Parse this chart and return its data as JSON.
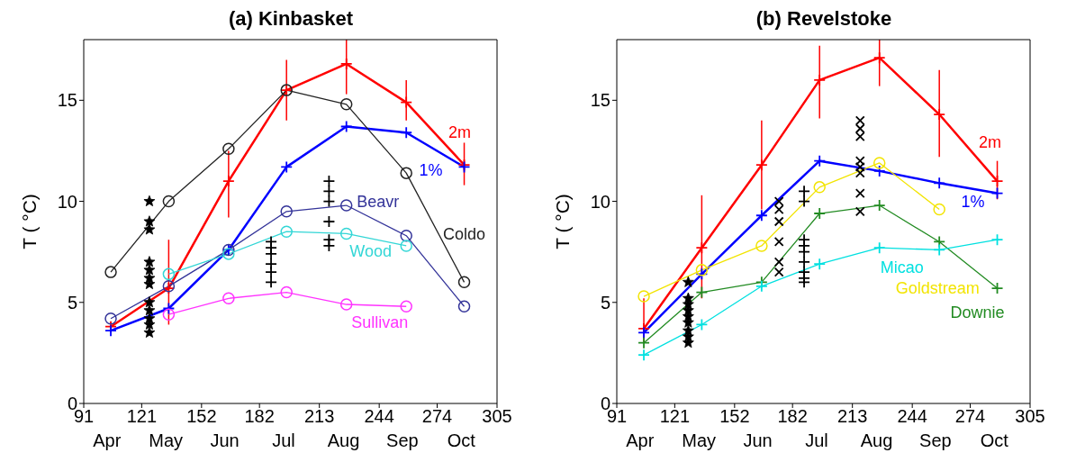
{
  "chart_data": [
    {
      "type": "line",
      "title": "(a) Kinbasket",
      "ylabel": "T ( °C)",
      "xlim": [
        91,
        305
      ],
      "xticks": [
        91,
        121,
        152,
        182,
        213,
        244,
        274,
        305
      ],
      "annotations": [
        "Apr",
        "May",
        "Jun",
        "Jul",
        "Aug",
        "Sep",
        "Oct"
      ],
      "ylim": [
        0,
        18
      ],
      "yticks": [
        0,
        5,
        10,
        15
      ],
      "series": [
        {
          "name": "2m",
          "color": "#ff0000",
          "marker": "cross",
          "x": [
            105,
            135,
            166,
            196,
            227,
            258,
            288
          ],
          "values": [
            3.8,
            5.7,
            11.0,
            15.5,
            16.8,
            14.9,
            11.8
          ],
          "errors": [
            null,
            [
              3.9,
              8.1
            ],
            [
              9.2,
              12.5
            ],
            [
              14.0,
              17.0
            ],
            [
              15.3,
              18.0
            ],
            [
              14.0,
              16.0
            ],
            [
              10.8,
              12.9
            ]
          ]
        },
        {
          "name": "1%",
          "color": "#0000ff",
          "marker": "cross",
          "x": [
            105,
            135,
            166,
            196,
            227,
            258,
            288
          ],
          "values": [
            3.6,
            4.7,
            7.6,
            11.7,
            13.7,
            13.4,
            11.7
          ]
        },
        {
          "name": "Coldo",
          "color": "#222222",
          "marker": "circle",
          "x": [
            105,
            135,
            166,
            196,
            227,
            258,
            288
          ],
          "values": [
            6.5,
            10.0,
            12.6,
            15.5,
            14.8,
            11.4,
            6.0
          ]
        },
        {
          "name": "Beavr",
          "color": "#333399",
          "marker": "circle",
          "x": [
            105,
            135,
            166,
            196,
            227,
            258,
            288
          ],
          "values": [
            4.2,
            5.8,
            7.6,
            9.5,
            9.8,
            8.3,
            4.8
          ]
        },
        {
          "name": "Wood",
          "color": "#33d6d6",
          "marker": "circle",
          "x": [
            135,
            166,
            196,
            227,
            258
          ],
          "values": [
            6.4,
            7.4,
            8.5,
            8.4,
            7.8
          ]
        },
        {
          "name": "Sullivan",
          "color": "#ff33ff",
          "marker": "circle",
          "x": [
            135,
            166,
            196,
            227,
            258
          ],
          "values": [
            4.4,
            5.2,
            5.5,
            4.9,
            4.8
          ]
        },
        {
          "type": "scatter",
          "color": "#000000",
          "marker": "star",
          "x": [
            125,
            125,
            125,
            125,
            125,
            125,
            125,
            125,
            125,
            125,
            125,
            125
          ],
          "values": [
            10.0,
            9.0,
            8.6,
            7.0,
            6.6,
            6.2,
            5.9,
            5.0,
            4.6,
            4.2,
            3.9,
            3.5
          ]
        },
        {
          "type": "scatter",
          "color": "#000000",
          "marker": "cross",
          "x": [
            188,
            188,
            188,
            188,
            188,
            188
          ],
          "values": [
            8.0,
            7.7,
            7.4,
            6.9,
            6.5,
            6.0
          ]
        },
        {
          "type": "scatter",
          "color": "#000000",
          "marker": "cross",
          "x": [
            218,
            218,
            218,
            218,
            218,
            218
          ],
          "values": [
            11.0,
            10.5,
            10.0,
            9.0,
            8.1,
            7.8
          ]
        }
      ]
    },
    {
      "type": "line",
      "title": "(b) Revelstoke",
      "ylabel": "T ( °C)",
      "xlim": [
        91,
        305
      ],
      "xticks": [
        91,
        121,
        152,
        182,
        213,
        244,
        274,
        305
      ],
      "annotations": [
        "Apr",
        "May",
        "Jun",
        "Jul",
        "Aug",
        "Sep",
        "Oct"
      ],
      "ylim": [
        0,
        18
      ],
      "yticks": [
        0,
        5,
        10,
        15
      ],
      "series": [
        {
          "name": "2m",
          "color": "#ff0000",
          "marker": "cross",
          "x": [
            105,
            135,
            166,
            196,
            227,
            258,
            288
          ],
          "values": [
            3.7,
            7.7,
            11.8,
            16.0,
            17.1,
            14.3,
            11.0
          ],
          "errors": [
            [
              3.0,
              5.2
            ],
            [
              5.2,
              10.3
            ],
            [
              9.6,
              14.0
            ],
            [
              14.1,
              17.7
            ],
            [
              15.7,
              18.0
            ],
            [
              12.2,
              16.5
            ],
            [
              10.1,
              12.0
            ]
          ]
        },
        {
          "name": "1%",
          "color": "#0000ff",
          "marker": "cross",
          "x": [
            105,
            135,
            166,
            196,
            227,
            258,
            288
          ],
          "values": [
            3.5,
            6.4,
            9.3,
            12.0,
            11.5,
            10.9,
            10.4
          ]
        },
        {
          "name": "Goldstream",
          "color": "#f2e400",
          "marker": "circle",
          "x": [
            105,
            135,
            166,
            196,
            227,
            258
          ],
          "values": [
            5.3,
            6.6,
            7.8,
            10.7,
            11.9,
            9.6
          ]
        },
        {
          "name": "Downie",
          "color": "#228b22",
          "marker": "cross",
          "x": [
            105,
            135,
            166,
            196,
            227,
            258,
            288
          ],
          "values": [
            3.0,
            5.5,
            6.0,
            9.4,
            9.8,
            8.0,
            5.7
          ]
        },
        {
          "name": "Micao",
          "color": "#00e0e0",
          "marker": "cross",
          "x": [
            105,
            135,
            166,
            196,
            227,
            258,
            288
          ],
          "values": [
            2.4,
            3.9,
            5.8,
            6.9,
            7.7,
            7.6,
            8.1
          ]
        },
        {
          "type": "scatter",
          "color": "#000000",
          "marker": "star",
          "x": [
            128,
            128,
            128,
            128,
            128,
            128,
            128,
            128,
            128
          ],
          "values": [
            6.0,
            5.2,
            4.9,
            4.6,
            4.3,
            4.0,
            3.6,
            3.3,
            3.0
          ]
        },
        {
          "type": "scatter",
          "color": "#000000",
          "marker": "x",
          "x": [
            175,
            175,
            175,
            175,
            175,
            175
          ],
          "values": [
            10.0,
            9.6,
            9.0,
            8.0,
            7.0,
            6.5
          ]
        },
        {
          "type": "scatter",
          "color": "#000000",
          "marker": "cross",
          "x": [
            188,
            188,
            188,
            188,
            188,
            188,
            188,
            188,
            188
          ],
          "values": [
            10.5,
            10.0,
            8.1,
            7.8,
            7.5,
            7.0,
            6.5,
            6.2,
            6.0
          ]
        },
        {
          "type": "scatter",
          "color": "#000000",
          "marker": "x",
          "x": [
            217,
            217,
            217,
            217,
            217,
            217,
            217,
            217
          ],
          "values": [
            14.0,
            13.6,
            13.2,
            12.0,
            11.7,
            11.4,
            10.4,
            9.5
          ]
        }
      ]
    }
  ]
}
